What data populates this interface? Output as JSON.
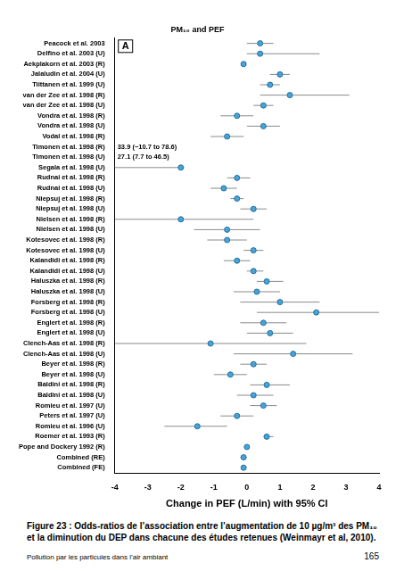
{
  "chart_data": {
    "type": "forest",
    "title": "PM₁₀ and PEF",
    "panel_label": "A",
    "x_label": "Change in PEF (L/min) with 95% CI",
    "categories": [
      "Peacock et al. 2003",
      "Delfino et al. 2003 (U)",
      "Aekplakorn et al. 2003 (R)",
      "Jalaludin et al. 2004 (U)",
      "Tiittanen et al. 1999 (U)",
      "van der Zee et al. 1998 (R)",
      "van der Zee et al. 1998 (U)",
      "Vondra et al. 1998 (R)",
      "Vondra et al. 1998 (U)",
      "Vodal et al. 1998 (R)",
      "Timonen et al. 1998 (R)",
      "Timonen et al. 1998 (U)",
      "Segala et al. 1998 (U)",
      "Rudnai et al. 1998 (R)",
      "Rudnai et al. 1998 (U)",
      "Niepsuj et al. 1998 (R)",
      "Niepsuj et al. 1998 (U)",
      "Nielsen et al. 1998 (R)",
      "Nielsen et al. 1998 (U)",
      "Kotesovec et al. 1998 (R)",
      "Kotesovec et al. 1998 (U)",
      "Kalandidi et al. 1998 (R)",
      "Kalandidi et al. 1998 (U)",
      "Haluszka et al. 1998 (R)",
      "Haluszka et al. 1998 (U)",
      "Forsberg et al. 1998 (R)",
      "Forsberg et al. 1998 (U)",
      "Englert et al. 1998 (R)",
      "Englert et al. 1998 (U)",
      "Clench-Aas et al. 1998 (R)",
      "Clench-Aas et al. 1998 (U)",
      "Beyer et al. 1998 (R)",
      "Beyer et al. 1998 (U)",
      "Baldini et al. 1998 (R)",
      "Baldini et al. 1998 (U)",
      "Romieu et al. 1997 (U)",
      "Peters et al. 1997 (U)",
      "Romieu et al. 1996 (U)",
      "Roemer et al. 1993 (R)",
      "Pope and Dockery 1992 (R)",
      "Combined (RE)",
      "Combined (FE)"
    ],
    "values": [
      0.4,
      0.4,
      -0.1,
      1.0,
      0.7,
      1.3,
      0.5,
      -0.3,
      0.5,
      -0.6,
      null,
      null,
      -2.0,
      -0.3,
      -0.7,
      -0.3,
      0.2,
      -2.0,
      -0.6,
      -0.6,
      0.2,
      -0.3,
      0.2,
      0.6,
      0.3,
      1.0,
      2.1,
      0.5,
      0.7,
      -1.1,
      1.4,
      0.2,
      -0.5,
      0.6,
      0.2,
      0.5,
      -0.3,
      -1.5,
      0.6,
      0.0,
      -0.1,
      -0.1
    ],
    "ci_lower": [
      0.0,
      0.0,
      -0.15,
      0.7,
      0.4,
      0.4,
      0.2,
      -0.8,
      0.0,
      -1.1,
      null,
      null,
      -4.4,
      -0.6,
      -1.1,
      -0.5,
      -0.2,
      -4.0,
      -1.6,
      -1.2,
      -0.1,
      -0.7,
      0.0,
      0.3,
      -0.4,
      -0.2,
      0.3,
      -0.2,
      0.0,
      -4.0,
      -0.4,
      -0.2,
      -1.0,
      0.1,
      -0.3,
      0.1,
      -0.8,
      -2.5,
      0.5,
      -0.05,
      -0.2,
      -0.15
    ],
    "ci_upper": [
      0.8,
      2.2,
      -0.05,
      1.3,
      1.0,
      3.1,
      0.8,
      0.2,
      1.0,
      -0.1,
      null,
      null,
      -1.9,
      0.1,
      -0.3,
      -0.1,
      0.6,
      0.2,
      0.4,
      0.0,
      0.5,
      0.1,
      0.5,
      1.1,
      1.0,
      2.2,
      4.0,
      1.2,
      1.4,
      1.8,
      3.2,
      0.6,
      0.0,
      1.3,
      0.8,
      0.9,
      0.2,
      -0.6,
      0.8,
      0.05,
      0.0,
      -0.05
    ],
    "annotations": [
      {
        "category": "Timonen et al. 1998 (R)",
        "text": "33.9 (−10.7 to 78.6)"
      },
      {
        "category": "Timonen et al. 1998 (U)",
        "text": "27.1 (7.7 to 46.5)"
      }
    ],
    "color": "#4aa3d6",
    "xlim": [
      -4,
      4
    ],
    "xticks": [
      -4,
      -3,
      -2,
      -1,
      0,
      1,
      2,
      3,
      4
    ],
    "grid": false
  },
  "document": {
    "caption": "Figure 23 : Odds-ratios de l’association entre l’augmentation de 10 µg/m³ des PM₁₀ et la diminution du DEP dans chacune des études retenues (Weinmayr et al, 2010).",
    "footer": "Pollution par les particules dans l’air ambiant",
    "page": "165"
  }
}
